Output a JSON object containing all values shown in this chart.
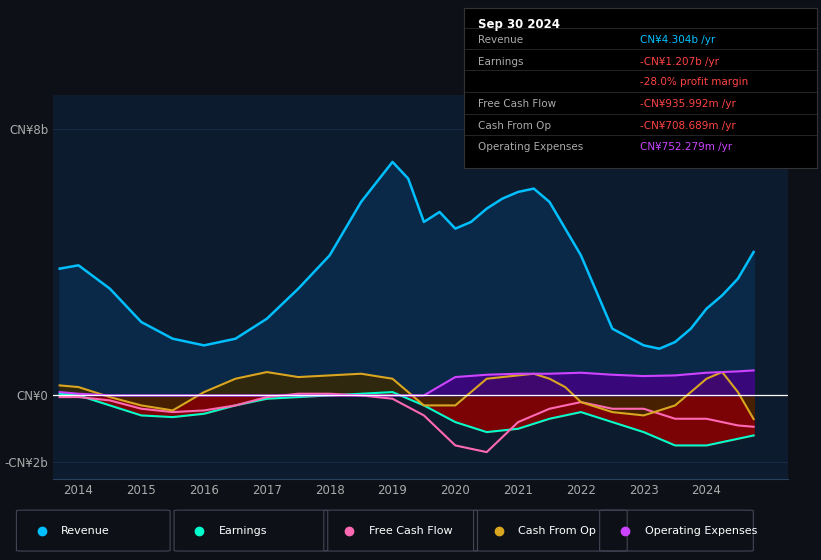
{
  "bg_color": "#0d1117",
  "plot_bg_color": "#0d1b2e",
  "ylim": [
    -2500000000.0,
    9000000000.0
  ],
  "xlim_left": 2013.6,
  "xlim_right": 2025.3,
  "revenue": {
    "x": [
      2013.7,
      2014.0,
      2014.5,
      2015.0,
      2015.5,
      2016.0,
      2016.5,
      2017.0,
      2017.5,
      2018.0,
      2018.5,
      2019.0,
      2019.25,
      2019.5,
      2019.75,
      2020.0,
      2020.25,
      2020.5,
      2020.75,
      2021.0,
      2021.25,
      2021.5,
      2021.75,
      2022.0,
      2022.5,
      2023.0,
      2023.25,
      2023.5,
      2023.75,
      2024.0,
      2024.25,
      2024.5,
      2024.75
    ],
    "y": [
      3800000000.0,
      3900000000.0,
      3200000000.0,
      2200000000.0,
      1700000000.0,
      1500000000.0,
      1700000000.0,
      2300000000.0,
      3200000000.0,
      4200000000.0,
      5800000000.0,
      7000000000.0,
      6500000000.0,
      5200000000.0,
      5500000000.0,
      5000000000.0,
      5200000000.0,
      5600000000.0,
      5900000000.0,
      6100000000.0,
      6200000000.0,
      5800000000.0,
      5000000000.0,
      4200000000.0,
      2000000000.0,
      1500000000.0,
      1400000000.0,
      1600000000.0,
      2000000000.0,
      2600000000.0,
      3000000000.0,
      3500000000.0,
      4300000000.0
    ],
    "color": "#00bfff",
    "fill_color": "#0a2a4a"
  },
  "earnings": {
    "x": [
      2013.7,
      2014.0,
      2014.5,
      2015.0,
      2015.5,
      2016.0,
      2016.5,
      2017.0,
      2017.5,
      2018.0,
      2018.5,
      2019.0,
      2019.5,
      2020.0,
      2020.5,
      2021.0,
      2021.5,
      2022.0,
      2022.5,
      2023.0,
      2023.5,
      2024.0,
      2024.5,
      2024.75
    ],
    "y": [
      50000000.0,
      0.0,
      -300000000.0,
      -600000000.0,
      -650000000.0,
      -550000000.0,
      -300000000.0,
      -100000000.0,
      -50000000.0,
      0.0,
      50000000.0,
      100000000.0,
      -300000000.0,
      -800000000.0,
      -1100000000.0,
      -1000000000.0,
      -700000000.0,
      -500000000.0,
      -800000000.0,
      -1100000000.0,
      -1500000000.0,
      -1500000000.0,
      -1300000000.0,
      -1200000000.0
    ],
    "color": "#00ffcc",
    "fill_color": "#8b0000"
  },
  "free_cash_flow": {
    "x": [
      2013.7,
      2014.0,
      2014.5,
      2015.0,
      2015.5,
      2016.0,
      2016.5,
      2017.0,
      2017.5,
      2018.0,
      2018.5,
      2019.0,
      2019.5,
      2020.0,
      2020.5,
      2021.0,
      2021.5,
      2022.0,
      2022.5,
      2023.0,
      2023.5,
      2024.0,
      2024.5,
      2024.75
    ],
    "y": [
      -50000000.0,
      -50000000.0,
      -150000000.0,
      -400000000.0,
      -500000000.0,
      -450000000.0,
      -300000000.0,
      -50000000.0,
      50000000.0,
      50000000.0,
      0.0,
      -100000000.0,
      -600000000.0,
      -1500000000.0,
      -1700000000.0,
      -800000000.0,
      -400000000.0,
      -200000000.0,
      -400000000.0,
      -400000000.0,
      -700000000.0,
      -700000000.0,
      -900000000.0,
      -940000000.0
    ],
    "color": "#ff69b4"
  },
  "cash_from_op": {
    "x": [
      2013.7,
      2014.0,
      2014.5,
      2015.0,
      2015.5,
      2016.0,
      2016.5,
      2017.0,
      2017.5,
      2018.0,
      2018.5,
      2019.0,
      2019.5,
      2020.0,
      2020.5,
      2021.0,
      2021.25,
      2021.5,
      2021.75,
      2022.0,
      2022.5,
      2023.0,
      2023.5,
      2024.0,
      2024.25,
      2024.5,
      2024.75
    ],
    "y": [
      300000000.0,
      250000000.0,
      -50000000.0,
      -300000000.0,
      -450000000.0,
      100000000.0,
      500000000.0,
      700000000.0,
      550000000.0,
      600000000.0,
      650000000.0,
      500000000.0,
      -300000000.0,
      -300000000.0,
      500000000.0,
      600000000.0,
      650000000.0,
      500000000.0,
      250000000.0,
      -200000000.0,
      -500000000.0,
      -600000000.0,
      -300000000.0,
      500000000.0,
      700000000.0,
      100000000.0,
      -710000000.0
    ],
    "color": "#daa520",
    "fill_color": "#3a2800"
  },
  "operating_expenses": {
    "x": [
      2013.7,
      2014.0,
      2014.5,
      2015.0,
      2015.5,
      2016.0,
      2016.5,
      2017.0,
      2017.5,
      2018.0,
      2018.5,
      2019.0,
      2019.5,
      2020.0,
      2020.5,
      2021.0,
      2021.5,
      2022.0,
      2022.5,
      2023.0,
      2023.5,
      2024.0,
      2024.5,
      2024.75
    ],
    "y": [
      100000000.0,
      50000000.0,
      0.0,
      0.0,
      0.0,
      0.0,
      0.0,
      0.0,
      0.0,
      0.0,
      0.0,
      0.0,
      0.0,
      550000000.0,
      620000000.0,
      650000000.0,
      650000000.0,
      680000000.0,
      620000000.0,
      580000000.0,
      600000000.0,
      680000000.0,
      720000000.0,
      750000000.0
    ],
    "color": "#cc44ff",
    "fill_color": "#440088"
  },
  "yticks": {
    "values": [
      -2000000000.0,
      0,
      8000000000.0
    ],
    "labels": [
      "-CN¥2b",
      "CN¥0",
      "CN¥8b"
    ]
  },
  "xticks": [
    2014,
    2015,
    2016,
    2017,
    2018,
    2019,
    2020,
    2021,
    2022,
    2023,
    2024
  ],
  "zero_line_color": "#ffffff",
  "grid_color": "#1e3050",
  "info_box": {
    "title": "Sep 30 2024",
    "rows": [
      {
        "label": "Revenue",
        "value": "CN¥4.304b /yr",
        "value_color": "#00bfff"
      },
      {
        "label": "Earnings",
        "value": "-CN¥1.207b /yr",
        "value_color": "#ff4444"
      },
      {
        "label": "",
        "value": "-28.0% profit margin",
        "value_color": "#ff4444"
      },
      {
        "label": "Free Cash Flow",
        "value": "-CN¥935.992m /yr",
        "value_color": "#ff4444"
      },
      {
        "label": "Cash From Op",
        "value": "-CN¥708.689m /yr",
        "value_color": "#ff4444"
      },
      {
        "label": "Operating Expenses",
        "value": "CN¥752.279m /yr",
        "value_color": "#cc44ff"
      }
    ]
  },
  "legend": [
    {
      "label": "Revenue",
      "color": "#00bfff"
    },
    {
      "label": "Earnings",
      "color": "#00ffcc"
    },
    {
      "label": "Free Cash Flow",
      "color": "#ff69b4"
    },
    {
      "label": "Cash From Op",
      "color": "#daa520"
    },
    {
      "label": "Operating Expenses",
      "color": "#cc44ff"
    }
  ]
}
